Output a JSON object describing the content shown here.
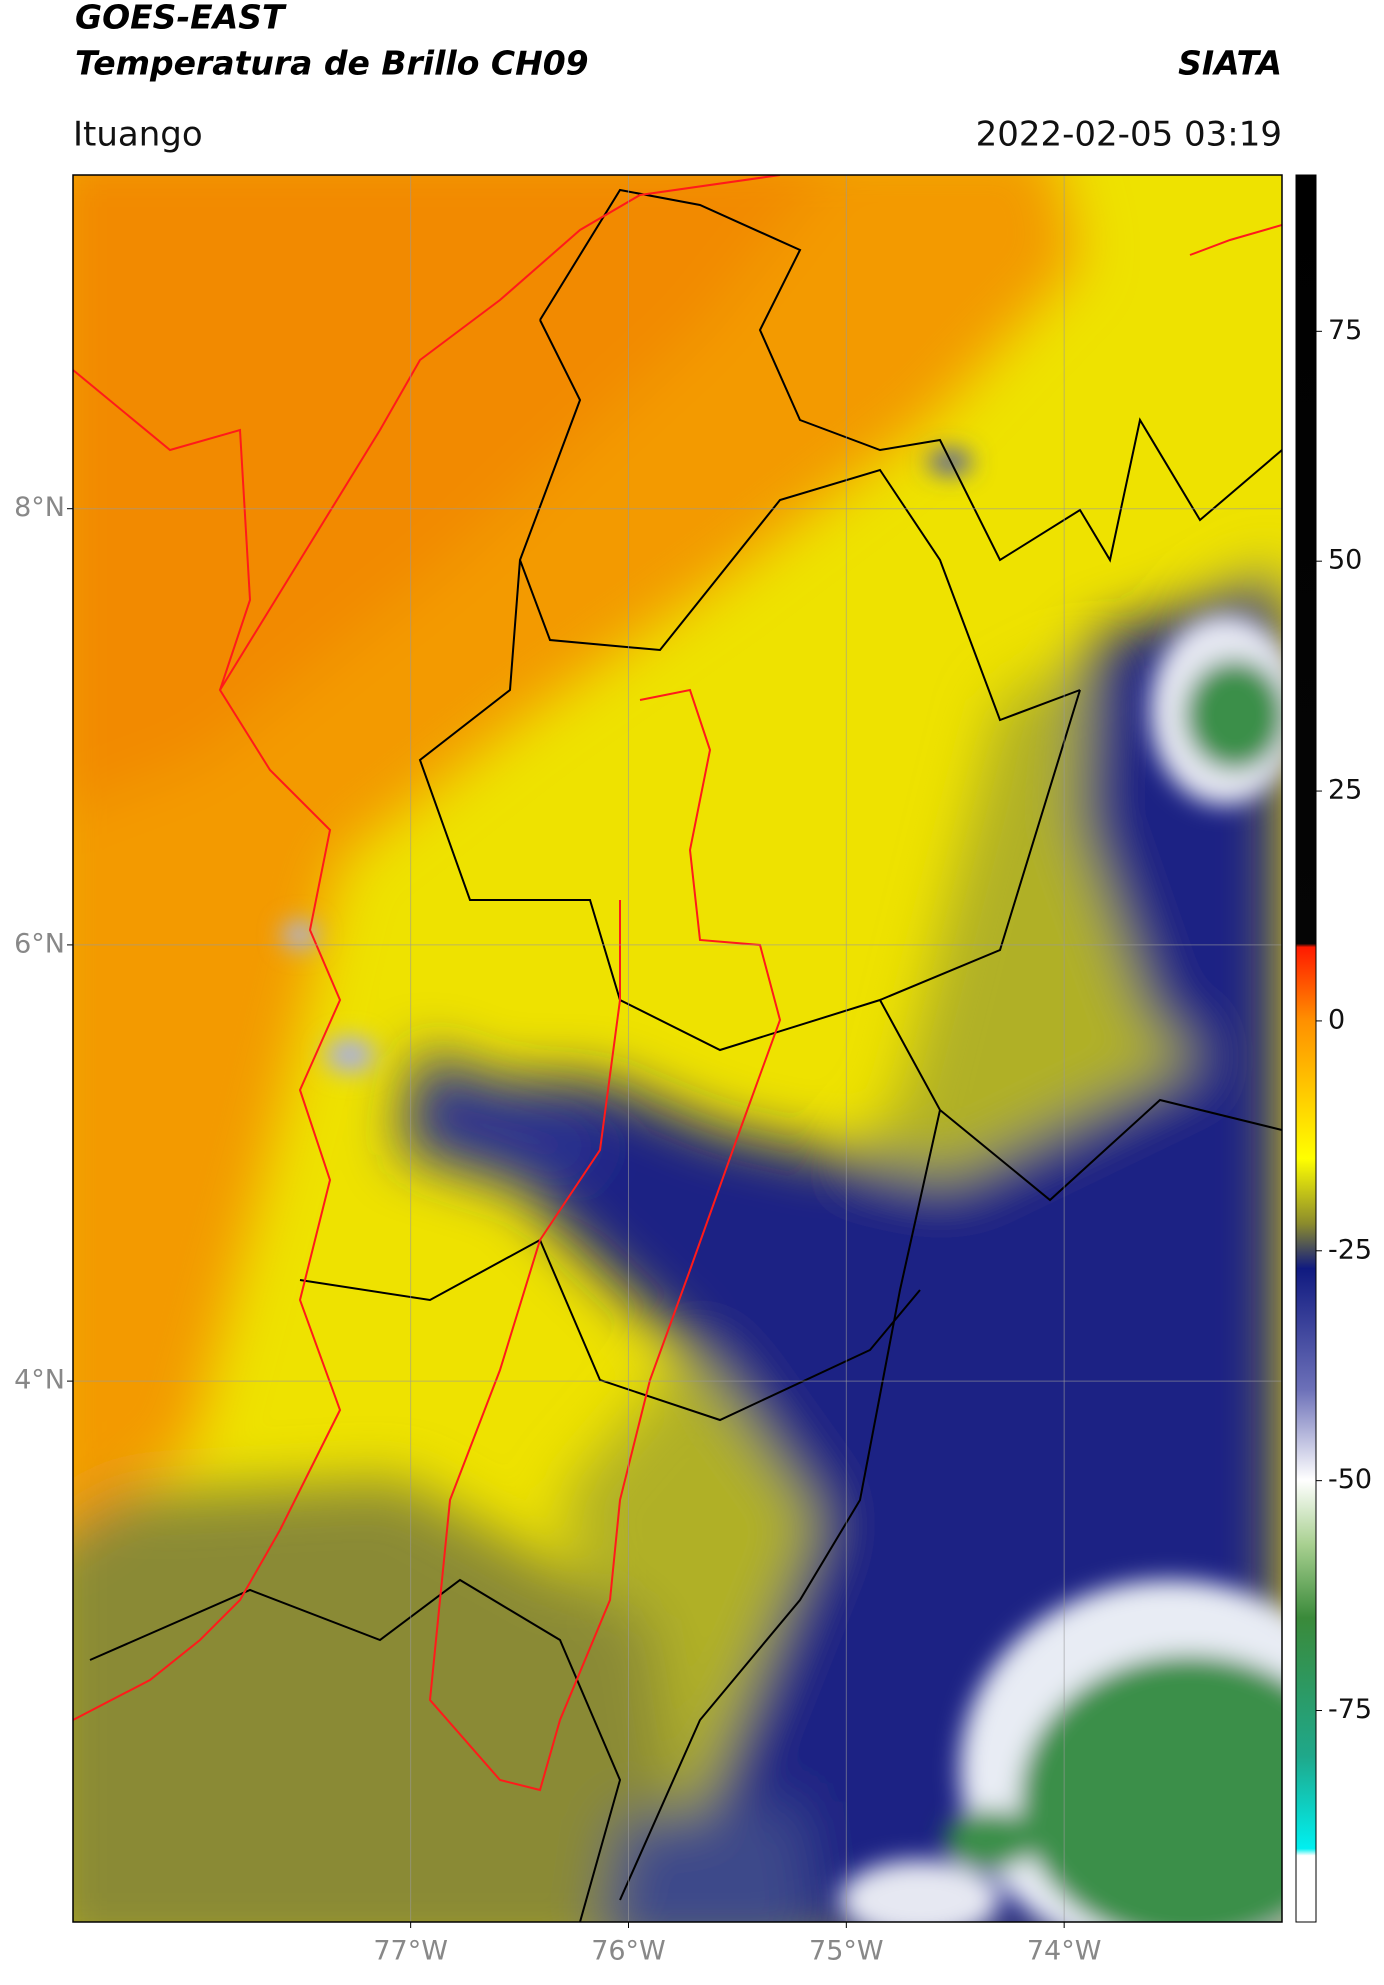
{
  "header": {
    "title": "GOES-EAST",
    "subtitle": "Temperatura de Brillo CH09",
    "source": "SIATA",
    "location": "Ituango",
    "datetime": "2022-02-05 03:19"
  },
  "map": {
    "xlim": [
      -78.55,
      -73.0
    ],
    "ylim": [
      1.52,
      9.53
    ],
    "xticks": [
      {
        "value": -77,
        "label": "77°W"
      },
      {
        "value": -76,
        "label": "76°W"
      },
      {
        "value": -75,
        "label": "75°W"
      },
      {
        "value": -74,
        "label": "74°W"
      }
    ],
    "yticks": [
      {
        "value": 8,
        "label": "8°N"
      },
      {
        "value": 6,
        "label": "6°N"
      },
      {
        "value": 4,
        "label": "4°N"
      }
    ],
    "grid": true
  },
  "colorbar": {
    "lim": [
      -98,
      92
    ],
    "ticks": [
      75,
      50,
      25,
      0,
      -25,
      -50,
      -75
    ]
  }
}
